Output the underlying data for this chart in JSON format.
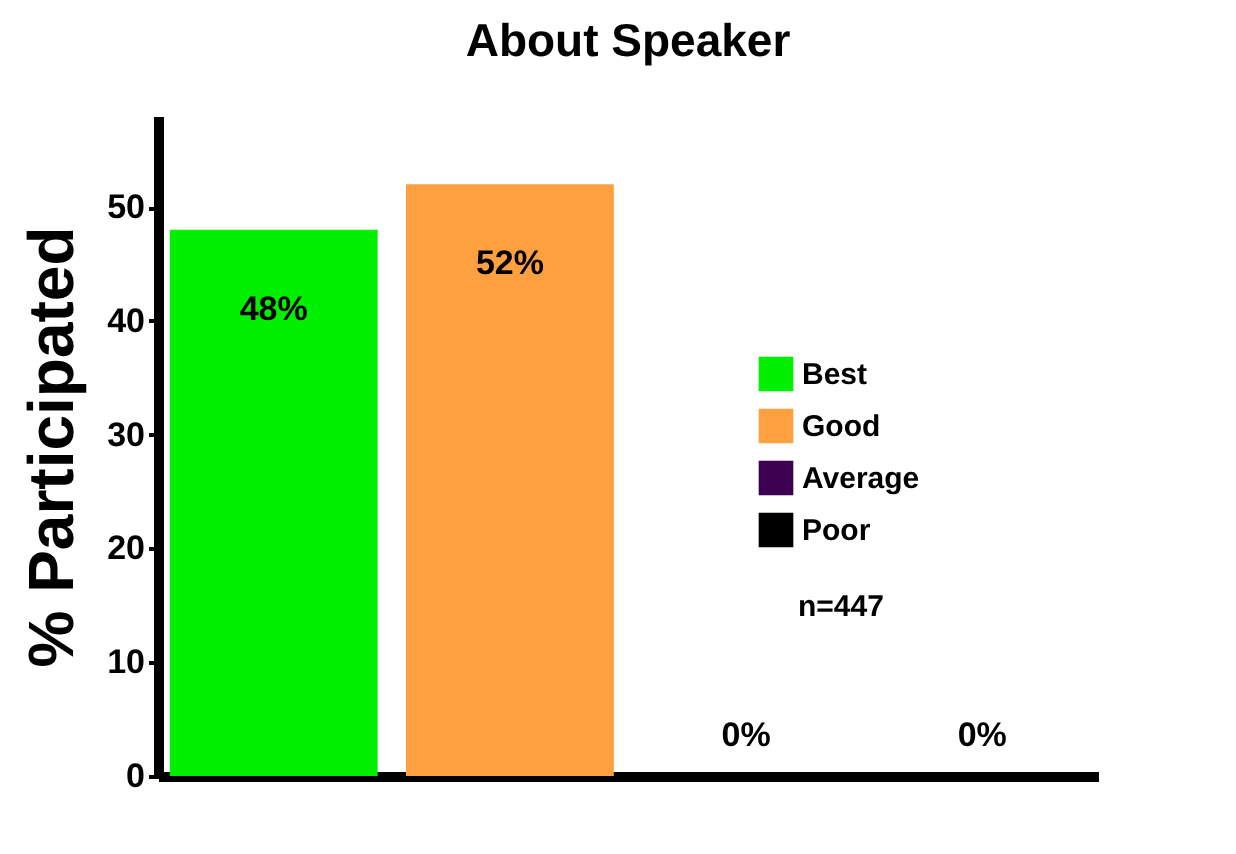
{
  "chart_data": {
    "type": "bar",
    "title": "About Speaker",
    "ylabel": "% Participated",
    "categories": [
      null,
      null,
      null,
      null
    ],
    "series": [
      {
        "name": "Best",
        "color": "#00f000",
        "values": [
          48,
          null,
          null,
          null
        ],
        "value_labels": [
          "48%",
          null,
          null,
          null
        ]
      },
      {
        "name": "Good",
        "color": "#ffa040",
        "values": [
          null,
          52,
          null,
          null
        ],
        "value_labels": [
          null,
          "52%",
          null,
          null
        ]
      },
      {
        "name": "Average",
        "color": "#3d0050",
        "values": [
          null,
          null,
          0,
          null
        ],
        "value_labels": [
          null,
          null,
          "0%",
          null
        ]
      },
      {
        "name": "Poor",
        "color": "#000000",
        "values": [
          null,
          null,
          null,
          0
        ],
        "value_labels": [
          null,
          null,
          null,
          "0%"
        ]
      }
    ],
    "ylim": [
      0,
      58
    ],
    "yticks": [
      0,
      10,
      20,
      30,
      40,
      50
    ],
    "annotations": [
      "n=447"
    ],
    "legend": "right",
    "grid": false
  }
}
